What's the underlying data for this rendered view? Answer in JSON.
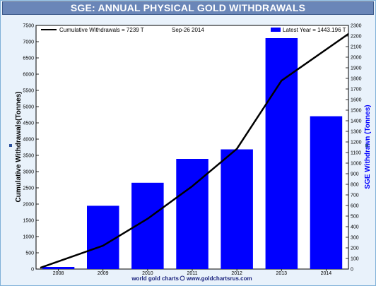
{
  "chart_data": {
    "type": "bar",
    "title": "SGE: ANNUAL PHYSICAL GOLD WITHDRAWALS",
    "date": "Sep-26  2014",
    "categories": [
      "2008",
      "2009",
      "2010",
      "2011",
      "2012",
      "2013",
      "2014"
    ],
    "series": [
      {
        "name": "Latest Year  = 1443.196 T",
        "type": "bar",
        "axis": "right",
        "color": "#0000ff",
        "values": [
          20,
          597,
          815,
          1040,
          1130,
          2180,
          1443
        ]
      },
      {
        "name": "Cumulative Withdrawals  = 7239 T",
        "type": "line",
        "axis": "left",
        "color": "#000000",
        "values": [
          40,
          720,
          1550,
          2550,
          3700,
          5800,
          7239
        ]
      }
    ],
    "ylabel_left": "Cumulative Withdrawals(Tonnes)",
    "ylabel_right": "SGE Withdrawn (Tonnes)",
    "ylim_left": [
      0,
      7500
    ],
    "yticks_left": [
      0,
      500,
      1000,
      1500,
      2000,
      2500,
      3000,
      3500,
      4000,
      4500,
      5000,
      5500,
      6000,
      6500,
      7000,
      7500
    ],
    "ylim_right": [
      0,
      2300
    ],
    "yticks_right": [
      0,
      100,
      200,
      300,
      400,
      500,
      600,
      700,
      800,
      900,
      1000,
      1100,
      1200,
      1300,
      1400,
      1500,
      1600,
      1700,
      1800,
      1900,
      2000,
      2100,
      2200,
      2300
    ],
    "legend_position": "top",
    "grid": false,
    "footer_left": "world gold charts",
    "footer_right": "www.goldchartsrus.com"
  }
}
